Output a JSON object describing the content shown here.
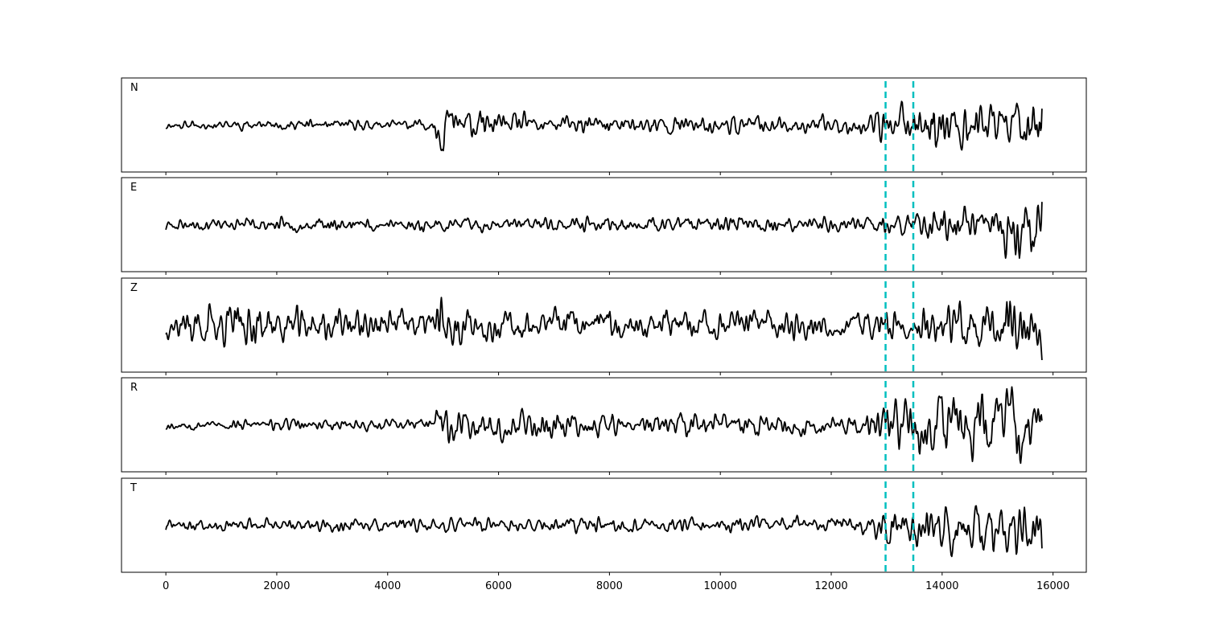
{
  "chart_data": {
    "type": "line",
    "xlim": [
      -800,
      16600
    ],
    "xticks": [
      0,
      2000,
      4000,
      6000,
      8000,
      10000,
      12000,
      14000,
      16000
    ],
    "x_tick_labels": [
      "0",
      "2000",
      "4000",
      "6000",
      "8000",
      "10000",
      "12000",
      "14000",
      "16000"
    ],
    "sample_range": [
      0,
      15800
    ],
    "picks": [
      12980,
      13480
    ],
    "pick_color": "#00bfbf",
    "trace_color": "#000000",
    "y_ticks_shown": false,
    "panels": [
      {
        "label": "N",
        "envelope": [
          [
            0,
            0.12
          ],
          [
            4800,
            0.14
          ],
          [
            4950,
            0.75
          ],
          [
            5400,
            0.42
          ],
          [
            7000,
            0.24
          ],
          [
            12400,
            0.24
          ],
          [
            12900,
            0.42
          ],
          [
            13400,
            0.72
          ],
          [
            14400,
            0.8
          ],
          [
            15000,
            0.68
          ],
          [
            15800,
            0.7
          ]
        ],
        "seed": 11
      },
      {
        "label": "E",
        "envelope": [
          [
            0,
            0.16
          ],
          [
            12600,
            0.2
          ],
          [
            13200,
            0.32
          ],
          [
            14000,
            0.42
          ],
          [
            14800,
            0.48
          ],
          [
            15200,
            0.9
          ],
          [
            15500,
            0.8
          ],
          [
            15800,
            0.62
          ]
        ],
        "seed": 23
      },
      {
        "label": "Z",
        "envelope": [
          [
            0,
            0.32
          ],
          [
            400,
            0.62
          ],
          [
            2000,
            0.55
          ],
          [
            4800,
            0.42
          ],
          [
            4950,
            0.85
          ],
          [
            5500,
            0.42
          ],
          [
            9800,
            0.42
          ],
          [
            12500,
            0.4
          ],
          [
            13000,
            0.52
          ],
          [
            14200,
            0.72
          ],
          [
            14600,
            0.92
          ],
          [
            15800,
            0.72
          ]
        ],
        "seed": 37
      },
      {
        "label": "R",
        "envelope": [
          [
            0,
            0.12
          ],
          [
            4800,
            0.16
          ],
          [
            4950,
            0.62
          ],
          [
            5600,
            0.38
          ],
          [
            9000,
            0.3
          ],
          [
            12400,
            0.3
          ],
          [
            13000,
            0.52
          ],
          [
            13800,
            0.78
          ],
          [
            15000,
            0.82
          ],
          [
            15300,
            0.95
          ],
          [
            15800,
            0.72
          ]
        ],
        "seed": 53
      },
      {
        "label": "T",
        "envelope": [
          [
            0,
            0.16
          ],
          [
            12500,
            0.22
          ],
          [
            13000,
            0.44
          ],
          [
            13800,
            0.62
          ],
          [
            14800,
            0.68
          ],
          [
            15300,
            0.9
          ],
          [
            15800,
            0.62
          ]
        ],
        "seed": 71
      }
    ]
  }
}
